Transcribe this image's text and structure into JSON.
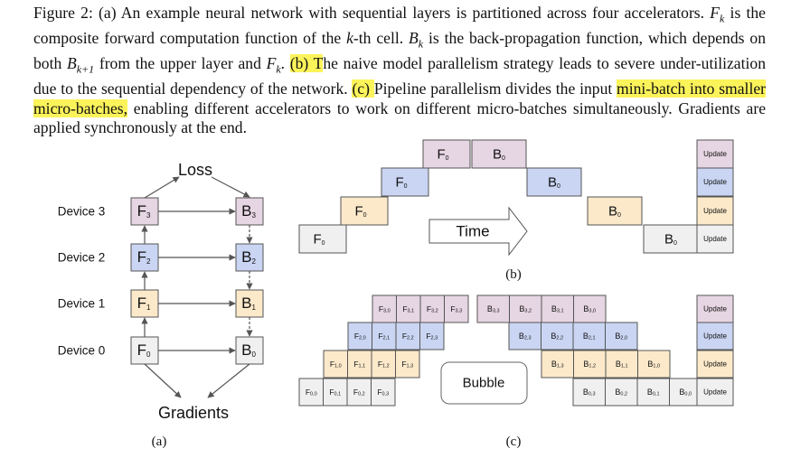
{
  "caption": {
    "parts": [
      {
        "text": "Figure 2: (a) An example neural network with sequential layers is partitioned across four accelerators. ",
        "style": "plain"
      },
      {
        "text": "F",
        "style": "math"
      },
      {
        "text": "k",
        "style": "math-sub"
      },
      {
        "text": " is the composite forward computation function of the ",
        "style": "plain"
      },
      {
        "text": "k",
        "style": "math"
      },
      {
        "text": "-th cell. ",
        "style": "plain"
      },
      {
        "text": "B",
        "style": "math"
      },
      {
        "text": "k",
        "style": "math-sub"
      },
      {
        "text": " is the back-propagation function, which depends on both ",
        "style": "plain"
      },
      {
        "text": "B",
        "style": "math"
      },
      {
        "text": "k+1",
        "style": "math-sub"
      },
      {
        "text": " from the upper layer and ",
        "style": "plain"
      },
      {
        "text": "F",
        "style": "math"
      },
      {
        "text": "k",
        "style": "math-sub"
      },
      {
        "text": ". ",
        "style": "plain"
      },
      {
        "text": "(b) T",
        "style": "highlight"
      },
      {
        "text": "he naive model parallelism strategy leads to severe under-utilization due to the sequential dependency of the network. ",
        "style": "plain"
      },
      {
        "text": "(c) ",
        "style": "highlight"
      },
      {
        "text": "Pipeline parallelism divides the input ",
        "style": "plain"
      },
      {
        "text": "mini-batch into smaller micro-batches,",
        "style": "highlight"
      },
      {
        "text": " enabling different accelerators to work on different micro-batches simultaneously. Gradients are applied synchronously at the end.",
        "style": "plain"
      }
    ]
  },
  "colors": {
    "forward3": "#e6d5e2",
    "forward2": "#c9d5f2",
    "forward1": "#fbe9ca",
    "forward0": "#f0f0f0",
    "border": "#555555"
  },
  "panel_a": {
    "loss_label": "Loss",
    "gradients_label": "Gradients",
    "sublabel": "(a)",
    "devices": [
      {
        "label": "Device 3",
        "f": "F",
        "f_sub": "3",
        "b": "B",
        "b_sub": "3",
        "color": "forward3"
      },
      {
        "label": "Device 2",
        "f": "F",
        "f_sub": "2",
        "b": "B",
        "b_sub": "2",
        "color": "forward2"
      },
      {
        "label": "Device 1",
        "f": "F",
        "f_sub": "1",
        "b": "B",
        "b_sub": "1",
        "color": "forward1"
      },
      {
        "label": "Device 0",
        "f": "F",
        "f_sub": "0",
        "b": "B",
        "b_sub": "0",
        "color": "forward0"
      }
    ]
  },
  "panel_b": {
    "sublabel": "(b)",
    "time_label": "Time",
    "update_label": "Update",
    "forward": [
      {
        "device": 0,
        "label": "F",
        "sub": "0"
      },
      {
        "device": 1,
        "label": "F",
        "sub": "0"
      },
      {
        "device": 2,
        "label": "F",
        "sub": "0"
      },
      {
        "device": 3,
        "label": "F",
        "sub": "0"
      }
    ],
    "backward": [
      {
        "device": 3,
        "label": "B",
        "sub": "0"
      },
      {
        "device": 2,
        "label": "B",
        "sub": "0"
      },
      {
        "device": 1,
        "label": "B",
        "sub": "0"
      },
      {
        "device": 0,
        "label": "B",
        "sub": "0"
      }
    ]
  },
  "panel_c": {
    "sublabel": "(c)",
    "bubble_label": "Bubble",
    "update_label": "Update",
    "rows": [
      {
        "device": 3,
        "forward": [
          "3,0",
          "3,1",
          "3,2",
          "3,3"
        ],
        "backward": [
          "3,3",
          "3,2",
          "3,1",
          "3,0"
        ]
      },
      {
        "device": 2,
        "forward": [
          "2,0",
          "2,1",
          "2,2",
          "2,3"
        ],
        "backward": [
          "2,3",
          "2,2",
          "2,1",
          "2,0"
        ]
      },
      {
        "device": 1,
        "forward": [
          "1,0",
          "1,1",
          "1,2",
          "1,3"
        ],
        "backward": [
          "1,3",
          "1,2",
          "1,1",
          "1,0"
        ]
      },
      {
        "device": 0,
        "forward": [
          "0,0",
          "0,1",
          "0,2",
          "0,3"
        ],
        "backward": [
          "0,3",
          "0,2",
          "0,1",
          "0,0"
        ]
      }
    ]
  }
}
